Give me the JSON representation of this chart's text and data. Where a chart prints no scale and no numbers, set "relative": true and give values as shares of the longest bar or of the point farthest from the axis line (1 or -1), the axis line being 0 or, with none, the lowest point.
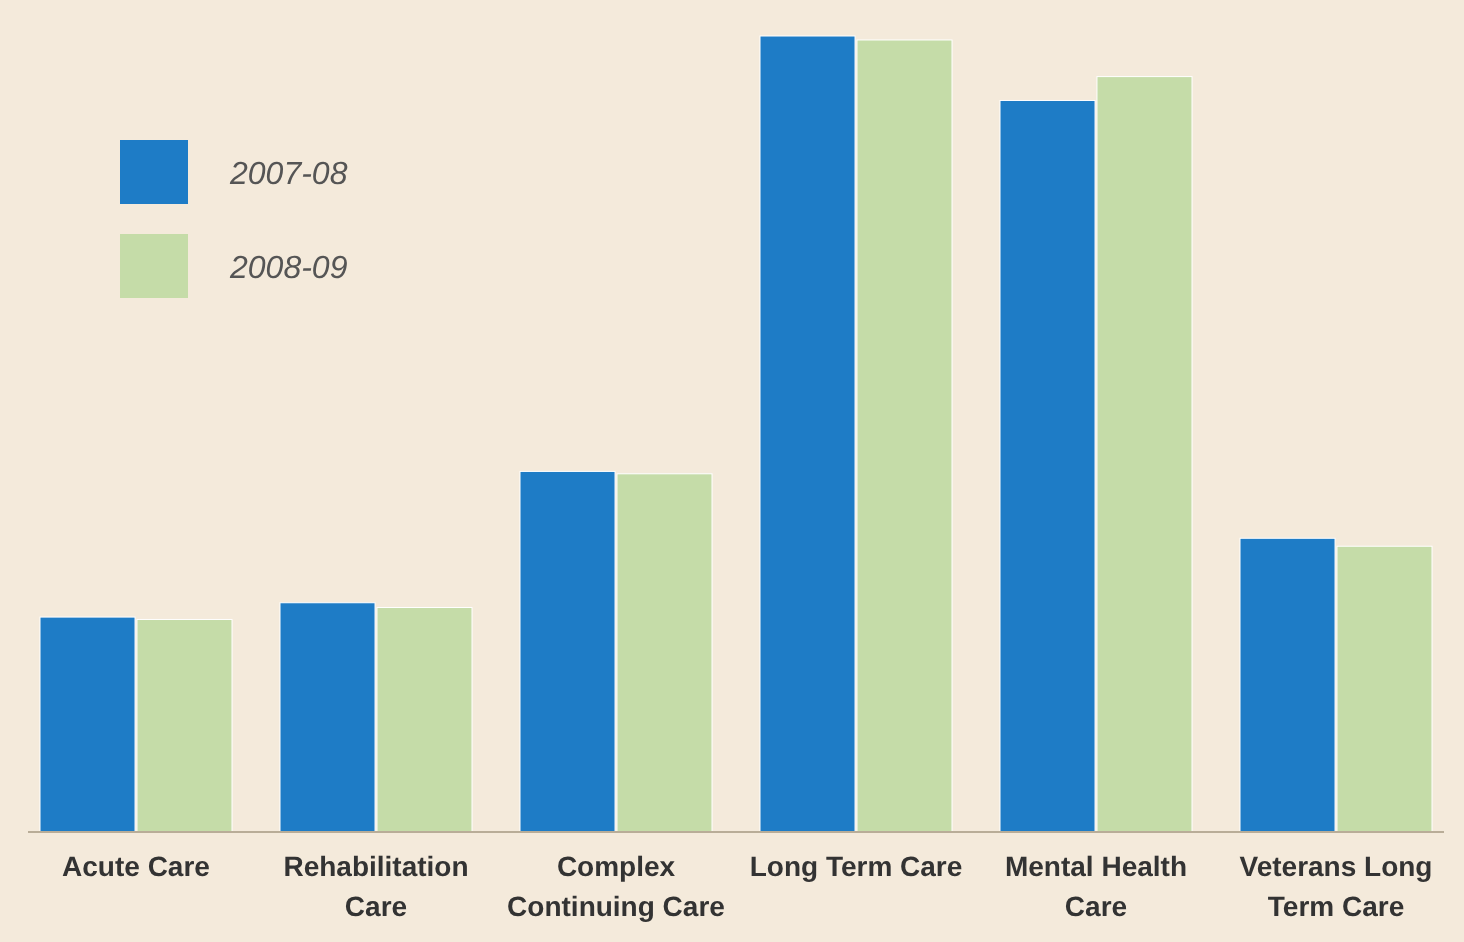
{
  "chart_data": {
    "type": "bar",
    "relative": true,
    "legend": "top left",
    "categories": [
      "Acute Care",
      "Rehabilitation Care",
      "Complex Continuing Care",
      "Long Term Care",
      "Mental Health Care",
      "Veterans Long Term Care"
    ],
    "series": [
      {
        "name": "2007-08",
        "color": "#1e7cc6",
        "values": [
          0.27,
          0.288,
          0.453,
          1,
          0.919,
          0.369
        ]
      },
      {
        "name": "2008-09",
        "color": "#c5dca8",
        "values": [
          0.267,
          0.282,
          0.45,
          0.995,
          0.949,
          0.359
        ]
      }
    ]
  }
}
